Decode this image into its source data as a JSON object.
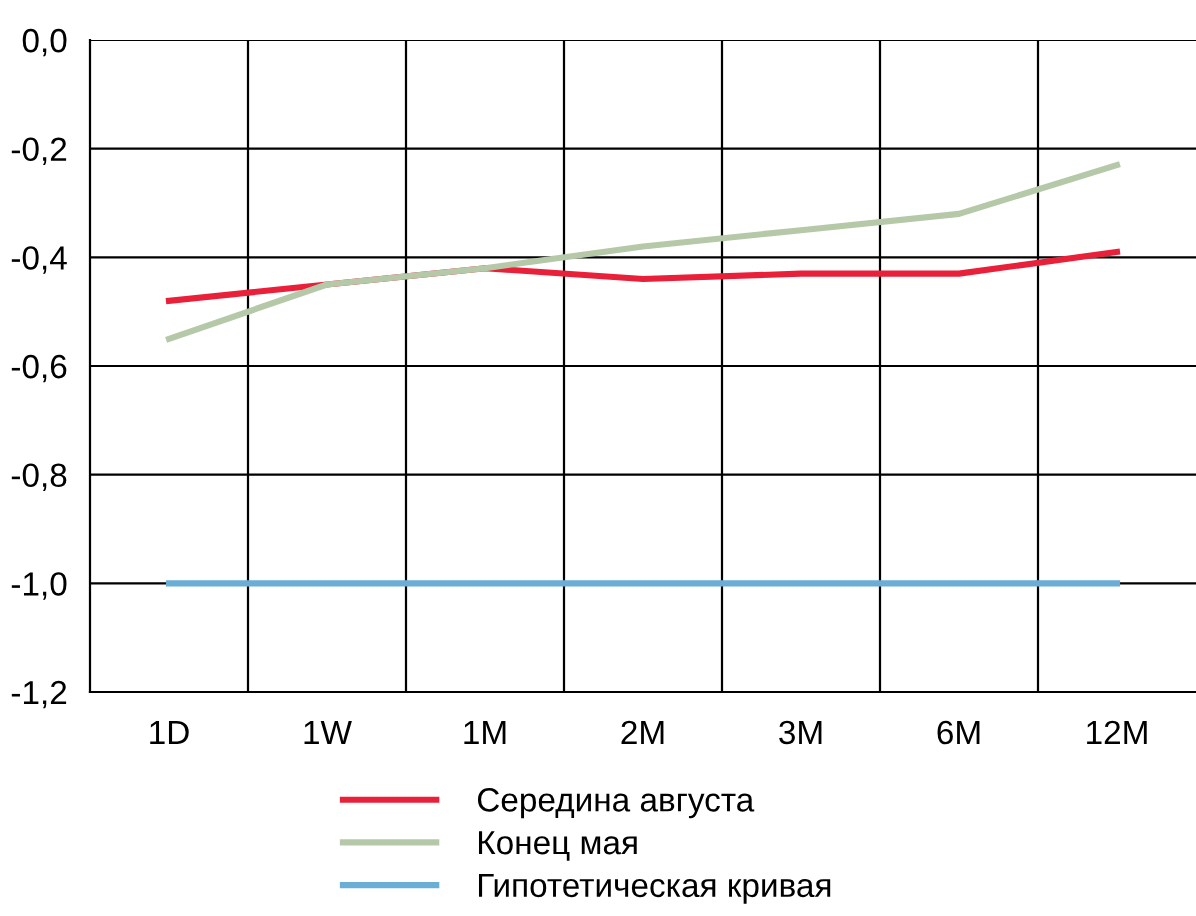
{
  "chart_data": {
    "type": "line",
    "categories": [
      "1D",
      "1W",
      "1M",
      "2M",
      "3M",
      "6M",
      "12M"
    ],
    "series": [
      {
        "name": "Середина августа",
        "color": "#e8203a",
        "values": [
          -0.48,
          -0.45,
          -0.42,
          -0.44,
          -0.43,
          -0.43,
          -0.39
        ]
      },
      {
        "name": "Конец мая",
        "color": "#b5c9a8",
        "values": [
          -0.55,
          -0.45,
          -0.42,
          -0.38,
          -0.35,
          -0.32,
          -0.23
        ]
      },
      {
        "name": "Гипотетическая кривая",
        "color": "#6aaed6",
        "values": [
          -1.0,
          -1.0,
          -1.0,
          -1.0,
          -1.0,
          -1.0,
          -1.0
        ]
      }
    ],
    "ylim": [
      -1.2,
      0
    ],
    "yticks": [
      {
        "value": -1.2,
        "label": "-1,2"
      },
      {
        "value": -1.0,
        "label": "-1,0"
      },
      {
        "value": -0.8,
        "label": "-0,8"
      },
      {
        "value": -0.6,
        "label": "-0,6"
      },
      {
        "value": -0.4,
        "label": "-0,4"
      },
      {
        "value": -0.2,
        "label": "-0,2"
      },
      {
        "value": 0,
        "label": "0,0"
      }
    ],
    "grid": true,
    "legend": "bottom",
    "marker": "none",
    "line_style": "solid"
  }
}
